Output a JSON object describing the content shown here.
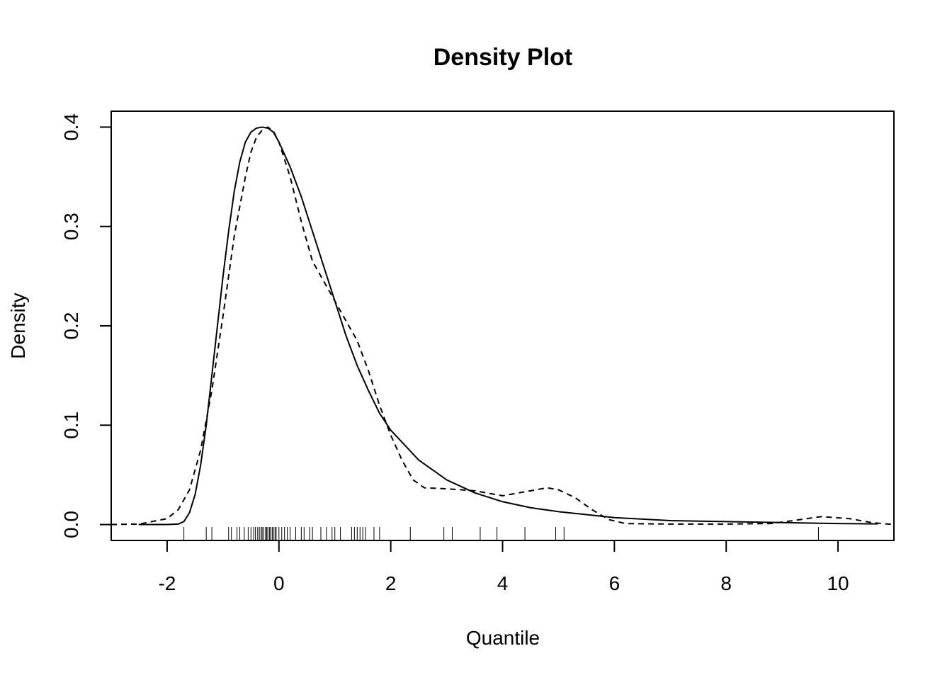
{
  "chart_data": {
    "type": "line",
    "title": "Density Plot",
    "xlabel": "Quantile",
    "ylabel": "Density",
    "xlim": [
      -3.0,
      11.0
    ],
    "ylim": [
      -0.016,
      0.416
    ],
    "xticks": [
      -2,
      0,
      2,
      4,
      6,
      8,
      10
    ],
    "yticks": [
      0.0,
      0.1,
      0.2,
      0.3,
      0.4
    ],
    "xtick_labels": [
      "-2",
      "0",
      "2",
      "4",
      "6",
      "8",
      "10"
    ],
    "ytick_labels": [
      "0.0",
      "0.1",
      "0.2",
      "0.3",
      "0.4"
    ],
    "grid": false,
    "legend": "none",
    "series": [
      {
        "line_style": "solid",
        "color": "#000000",
        "x": [
          -2.5,
          -2.0,
          -1.8,
          -1.7,
          -1.6,
          -1.5,
          -1.4,
          -1.3,
          -1.2,
          -1.1,
          -1.0,
          -0.9,
          -0.8,
          -0.7,
          -0.6,
          -0.5,
          -0.4,
          -0.3,
          -0.2,
          -0.1,
          0.0,
          0.2,
          0.4,
          0.6,
          0.8,
          1.0,
          1.2,
          1.4,
          1.6,
          1.8,
          2.0,
          2.5,
          3.0,
          3.5,
          4.0,
          4.5,
          5.0,
          5.5,
          6.0,
          7.0,
          8.0,
          9.0,
          10.0,
          10.7
        ],
        "y": [
          0.0,
          0.0,
          0.0005,
          0.003,
          0.012,
          0.03,
          0.06,
          0.1,
          0.15,
          0.2,
          0.25,
          0.295,
          0.335,
          0.365,
          0.385,
          0.395,
          0.399,
          0.4,
          0.399,
          0.395,
          0.385,
          0.36,
          0.33,
          0.295,
          0.26,
          0.225,
          0.19,
          0.16,
          0.135,
          0.112,
          0.095,
          0.065,
          0.045,
          0.032,
          0.023,
          0.017,
          0.013,
          0.01,
          0.007,
          0.004,
          0.003,
          0.002,
          0.001,
          0.0007
        ]
      },
      {
        "line_style": "dashed",
        "color": "#000000",
        "x": [
          -3.0,
          -2.5,
          -2.0,
          -1.8,
          -1.6,
          -1.4,
          -1.2,
          -1.0,
          -0.8,
          -0.6,
          -0.5,
          -0.4,
          -0.3,
          -0.2,
          -0.1,
          0.0,
          0.2,
          0.4,
          0.6,
          0.8,
          1.0,
          1.2,
          1.4,
          1.6,
          1.8,
          2.0,
          2.2,
          2.4,
          2.6,
          3.0,
          3.5,
          4.0,
          4.5,
          4.8,
          5.0,
          5.3,
          5.6,
          5.9,
          6.2,
          7.0,
          8.0,
          8.8,
          9.2,
          9.7,
          10.2,
          10.6,
          11.0
        ],
        "y": [
          0.0,
          0.0005,
          0.006,
          0.015,
          0.035,
          0.075,
          0.135,
          0.21,
          0.29,
          0.35,
          0.375,
          0.39,
          0.397,
          0.4,
          0.396,
          0.385,
          0.35,
          0.305,
          0.265,
          0.245,
          0.225,
          0.205,
          0.185,
          0.155,
          0.12,
          0.09,
          0.065,
          0.045,
          0.037,
          0.036,
          0.034,
          0.029,
          0.034,
          0.037,
          0.035,
          0.027,
          0.015,
          0.005,
          0.001,
          0.0005,
          0.0005,
          0.001,
          0.004,
          0.008,
          0.006,
          0.002,
          0.0
        ]
      }
    ],
    "rug": [
      -1.7,
      -1.3,
      -1.2,
      -0.9,
      -0.85,
      -0.75,
      -0.7,
      -0.62,
      -0.55,
      -0.5,
      -0.45,
      -0.42,
      -0.38,
      -0.35,
      -0.32,
      -0.3,
      -0.27,
      -0.24,
      -0.22,
      -0.2,
      -0.17,
      -0.15,
      -0.12,
      -0.1,
      -0.07,
      -0.05,
      0.0,
      0.05,
      0.1,
      0.15,
      0.2,
      0.3,
      0.4,
      0.45,
      0.55,
      0.6,
      0.75,
      0.85,
      0.95,
      1.0,
      1.1,
      1.3,
      1.35,
      1.4,
      1.45,
      1.5,
      1.55,
      1.7,
      1.8,
      2.35,
      2.95,
      3.1,
      3.6,
      3.9,
      4.4,
      4.95,
      5.1,
      9.65
    ]
  }
}
